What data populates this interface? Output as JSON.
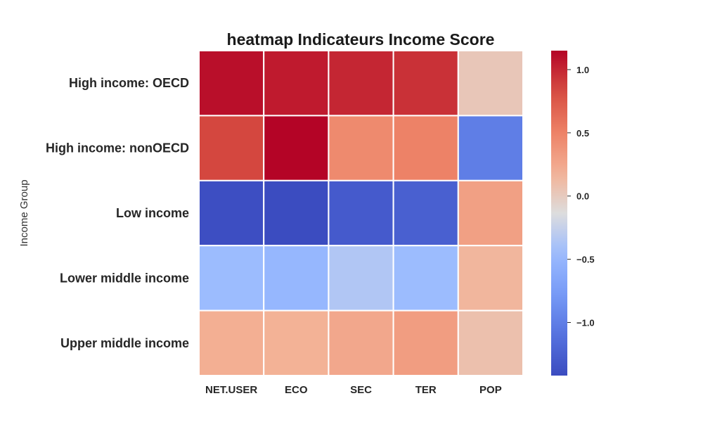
{
  "chart_data": {
    "type": "heatmap",
    "title": "heatmap Indicateurs Income Score",
    "ylabel": "Income Group",
    "xlabel": "",
    "columns": [
      "NET.USER",
      "ECO",
      "SEC",
      "TER",
      "POP"
    ],
    "rows": [
      "High income: OECD",
      "High income: nonOECD",
      "Low income",
      "Lower middle income",
      "Upper middle income"
    ],
    "values": [
      [
        1.1,
        1.05,
        1.0,
        0.95,
        0.03
      ],
      [
        0.85,
        1.15,
        0.45,
        0.5,
        -1.0
      ],
      [
        -1.4,
        -1.42,
        -1.3,
        -1.25,
        0.3
      ],
      [
        -0.45,
        -0.5,
        -0.35,
        -0.45,
        0.15
      ],
      [
        0.2,
        0.18,
        0.25,
        0.32,
        0.08
      ]
    ],
    "colormap": "coolwarm",
    "colorbar": {
      "vmin": -1.42,
      "vmax": 1.15,
      "ticks": [
        1.0,
        0.5,
        0.0,
        -0.5,
        -1.0
      ],
      "tick_labels": [
        "1.0",
        "0.5",
        "0.0",
        "−0.5",
        "−1.0"
      ]
    }
  }
}
